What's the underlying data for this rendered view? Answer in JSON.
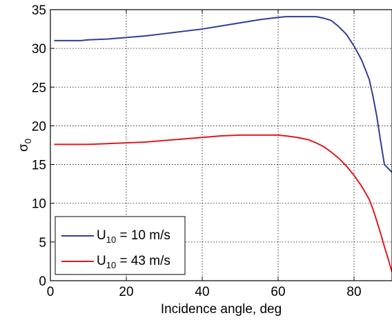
{
  "chart_data": {
    "type": "line",
    "xlabel": "Incidence angle, deg",
    "ylabel": {
      "base": "σ",
      "sub": "0"
    },
    "xlim": [
      0,
      90
    ],
    "ylim": [
      0,
      35
    ],
    "xticks": [
      0,
      20,
      40,
      60,
      80
    ],
    "yticks": [
      0,
      5,
      10,
      15,
      20,
      25,
      30,
      35
    ],
    "grid": true,
    "legend_position": "bottom-left",
    "series": [
      {
        "name": "U10 = 10 m/s",
        "label": {
          "pre": "U",
          "sub": "10",
          "post": " = 10 m/s"
        },
        "color": "#2e3d99",
        "x": [
          1,
          5,
          8,
          10,
          15,
          20,
          25,
          30,
          35,
          40,
          45,
          50,
          55,
          60,
          62,
          65,
          68,
          70,
          72,
          74,
          76,
          78,
          80,
          82,
          84,
          85,
          86,
          87,
          88,
          89,
          90
        ],
        "y": [
          31.0,
          31.0,
          31.0,
          31.1,
          31.2,
          31.4,
          31.6,
          31.9,
          32.2,
          32.5,
          32.9,
          33.3,
          33.7,
          34.0,
          34.1,
          34.1,
          34.1,
          34.1,
          33.9,
          33.6,
          32.8,
          31.8,
          30.3,
          28.5,
          26.0,
          23.8,
          21.2,
          18.0,
          15.0,
          14.5,
          14.0
        ]
      },
      {
        "name": "U10 = 43 m/s",
        "label": {
          "pre": "U",
          "sub": "10",
          "post": " = 43 m/s"
        },
        "color": "#e0191c",
        "x": [
          1,
          5,
          8,
          10,
          15,
          20,
          25,
          30,
          35,
          40,
          45,
          50,
          55,
          60,
          62,
          65,
          68,
          70,
          72,
          74,
          76,
          78,
          80,
          82,
          84,
          85,
          86,
          87,
          88,
          89,
          90
        ],
        "y": [
          17.6,
          17.6,
          17.6,
          17.6,
          17.7,
          17.8,
          17.9,
          18.1,
          18.3,
          18.5,
          18.7,
          18.8,
          18.8,
          18.8,
          18.7,
          18.5,
          18.2,
          17.8,
          17.3,
          16.6,
          15.8,
          14.8,
          13.6,
          12.2,
          10.5,
          9.2,
          7.7,
          6.1,
          4.4,
          2.8,
          1.1
        ]
      }
    ]
  }
}
